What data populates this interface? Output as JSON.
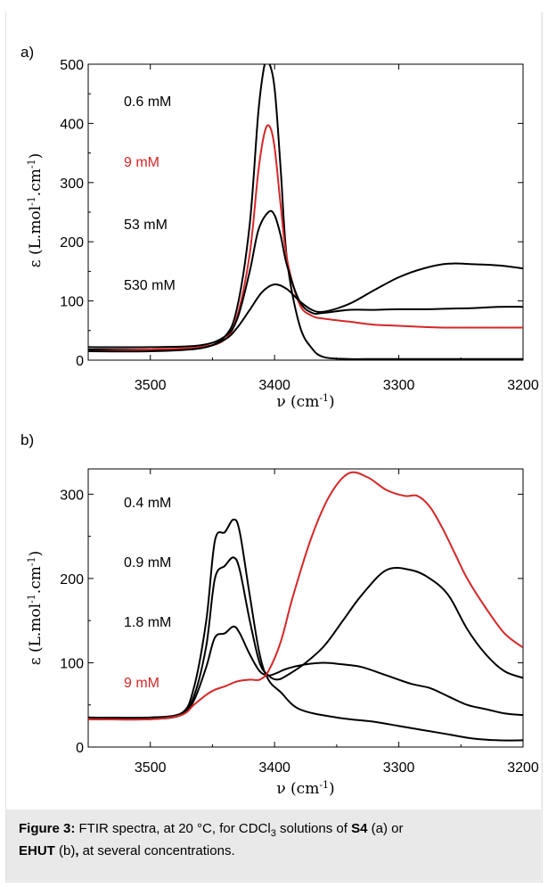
{
  "caption": {
    "label": "Figure 3:",
    "text_1": " FTIR spectra, at 20 °C, for CDCl",
    "sub_3": "3",
    "text_2": " solutions of ",
    "compound_1": "S4",
    "text_3": " (a) or ",
    "compound_2": "EHUT",
    "text_4": " (b)",
    "text_5": ", at several concentrations."
  },
  "chart_data": [
    {
      "type": "line",
      "panel_label": "a)",
      "xlabel": "ν (cm⁻¹)",
      "ylabel": "ε (L.mol⁻¹.cm⁻¹)",
      "xlim": [
        3550,
        3200
      ],
      "ylim": [
        0,
        500
      ],
      "x_reversed": true,
      "xticks": [
        3500,
        3400,
        3300,
        3200
      ],
      "yticks": [
        0,
        100,
        200,
        300,
        400,
        500
      ],
      "grid": false,
      "series": [
        {
          "name": "0.6 mM",
          "color": "#000000",
          "x": [
            3550,
            3500,
            3460,
            3440,
            3430,
            3420,
            3413,
            3408,
            3405,
            3400,
            3395,
            3390,
            3380,
            3370,
            3360,
            3340,
            3320,
            3300,
            3280,
            3260,
            3240,
            3220,
            3200
          ],
          "y": [
            18,
            18,
            20,
            40,
            90,
            230,
            420,
            500,
            505,
            460,
            320,
            170,
            60,
            20,
            5,
            2,
            2,
            2,
            2,
            2,
            2,
            2,
            2
          ]
        },
        {
          "name": "9 mM",
          "color": "#d62728",
          "x": [
            3550,
            3500,
            3460,
            3440,
            3430,
            3420,
            3413,
            3408,
            3404,
            3400,
            3395,
            3390,
            3380,
            3370,
            3360,
            3340,
            3320,
            3300,
            3280,
            3260,
            3240,
            3220,
            3200
          ],
          "y": [
            15,
            18,
            22,
            35,
            75,
            180,
            320,
            385,
            395,
            360,
            260,
            170,
            95,
            75,
            70,
            65,
            60,
            58,
            56,
            55,
            55,
            55,
            55
          ]
        },
        {
          "name": "53 mM",
          "color": "#000000",
          "x": [
            3550,
            3500,
            3460,
            3440,
            3430,
            3420,
            3413,
            3405,
            3400,
            3395,
            3390,
            3380,
            3370,
            3360,
            3340,
            3320,
            3300,
            3280,
            3260,
            3240,
            3220,
            3200
          ],
          "y": [
            22,
            22,
            25,
            40,
            70,
            150,
            220,
            250,
            245,
            210,
            160,
            100,
            80,
            80,
            85,
            85,
            86,
            86,
            87,
            88,
            90,
            90
          ]
        },
        {
          "name": "530 mM",
          "color": "#000000",
          "x": [
            3550,
            3500,
            3460,
            3440,
            3430,
            3420,
            3410,
            3400,
            3390,
            3380,
            3370,
            3360,
            3340,
            3320,
            3300,
            3280,
            3260,
            3240,
            3220,
            3200
          ],
          "y": [
            15,
            15,
            20,
            35,
            55,
            85,
            115,
            128,
            120,
            100,
            85,
            82,
            95,
            118,
            140,
            155,
            163,
            162,
            160,
            155
          ]
        }
      ]
    },
    {
      "type": "line",
      "panel_label": "b)",
      "xlabel": "ν (cm⁻¹)",
      "ylabel": "ε (L.mol⁻¹.cm⁻¹)",
      "xlim": [
        3550,
        3200
      ],
      "ylim": [
        0,
        330
      ],
      "x_reversed": true,
      "xticks": [
        3500,
        3400,
        3300,
        3200
      ],
      "yticks": [
        0,
        100,
        200,
        300
      ],
      "grid": false,
      "series": [
        {
          "name": "0.4 mM",
          "color": "#000000",
          "x": [
            3550,
            3500,
            3475,
            3465,
            3455,
            3448,
            3440,
            3433,
            3428,
            3420,
            3412,
            3405,
            3395,
            3380,
            3350,
            3320,
            3300,
            3280,
            3260,
            3240,
            3220,
            3200
          ],
          "y": [
            35,
            35,
            40,
            70,
            150,
            245,
            255,
            270,
            255,
            180,
            110,
            80,
            65,
            45,
            35,
            30,
            25,
            20,
            15,
            10,
            8,
            8
          ]
        },
        {
          "name": "0.9 mM",
          "color": "#000000",
          "x": [
            3550,
            3500,
            3475,
            3465,
            3455,
            3448,
            3440,
            3433,
            3428,
            3420,
            3412,
            3405,
            3398,
            3390,
            3375,
            3360,
            3345,
            3330,
            3310,
            3290,
            3275,
            3260,
            3245,
            3230,
            3215,
            3200
          ],
          "y": [
            35,
            35,
            40,
            60,
            120,
            200,
            215,
            225,
            210,
            150,
            100,
            85,
            80,
            85,
            100,
            120,
            150,
            180,
            210,
            210,
            200,
            180,
            140,
            110,
            90,
            82
          ]
        },
        {
          "name": "1.8 mM",
          "color": "#000000",
          "x": [
            3550,
            3500,
            3475,
            3465,
            3455,
            3448,
            3440,
            3433,
            3428,
            3420,
            3412,
            3405,
            3398,
            3390,
            3375,
            3360,
            3345,
            3330,
            3310,
            3290,
            3275,
            3260,
            3245,
            3230,
            3215,
            3200
          ],
          "y": [
            33,
            33,
            38,
            55,
            95,
            130,
            135,
            143,
            135,
            110,
            90,
            85,
            88,
            93,
            98,
            100,
            98,
            95,
            85,
            75,
            70,
            60,
            50,
            45,
            40,
            38
          ]
        },
        {
          "name": "9 mM",
          "color": "#d62728",
          "x": [
            3550,
            3500,
            3475,
            3465,
            3455,
            3448,
            3440,
            3430,
            3420,
            3412,
            3405,
            3395,
            3385,
            3370,
            3355,
            3340,
            3325,
            3310,
            3295,
            3285,
            3275,
            3265,
            3255,
            3245,
            3230,
            3215,
            3200
          ],
          "y": [
            33,
            33,
            38,
            50,
            62,
            68,
            72,
            78,
            80,
            80,
            90,
            125,
            180,
            250,
            300,
            325,
            320,
            305,
            298,
            298,
            285,
            260,
            230,
            200,
            165,
            135,
            118
          ]
        }
      ]
    }
  ]
}
